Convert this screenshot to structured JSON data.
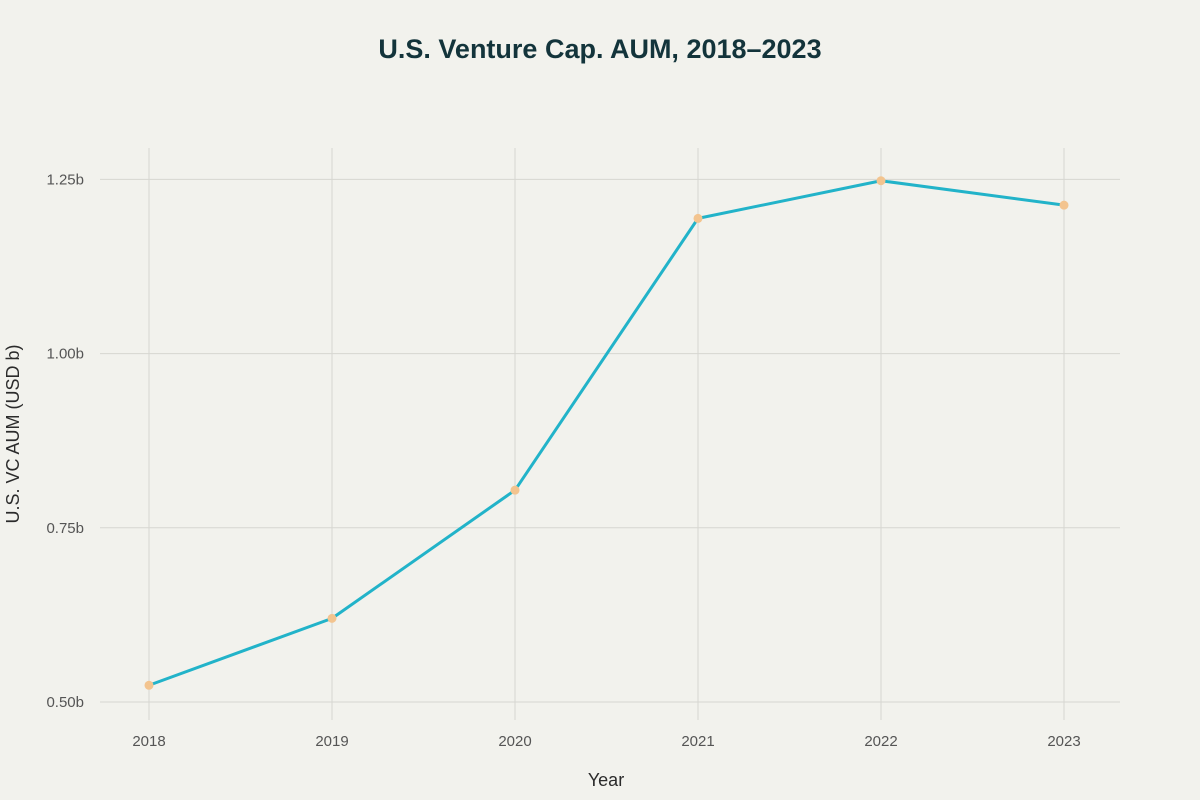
{
  "chart_data": {
    "type": "line",
    "title": "U.S. Venture Cap. AUM, 2018–2023",
    "xlabel": "Year",
    "ylabel": "U.S. VC AUM (USD b)",
    "x": [
      "2018",
      "2019",
      "2020",
      "2021",
      "2022",
      "2023"
    ],
    "series": [
      {
        "name": "U.S. VC AUM",
        "values": [
          0.524,
          0.62,
          0.804,
          1.194,
          1.248,
          1.213
        ]
      }
    ],
    "yticks": [
      0.5,
      0.75,
      1.0,
      1.25
    ],
    "ytick_labels": [
      "0.50b",
      "0.75b",
      "1.00b",
      "1.25b"
    ],
    "ylim": [
      0.5,
      1.295
    ],
    "grid": true,
    "legend": "none",
    "colors": {
      "background": "#f2f2ed",
      "line": "#22b3c9",
      "marker": "#f3c48f",
      "grid": "#d6d6d1",
      "title": "#13343b"
    }
  }
}
